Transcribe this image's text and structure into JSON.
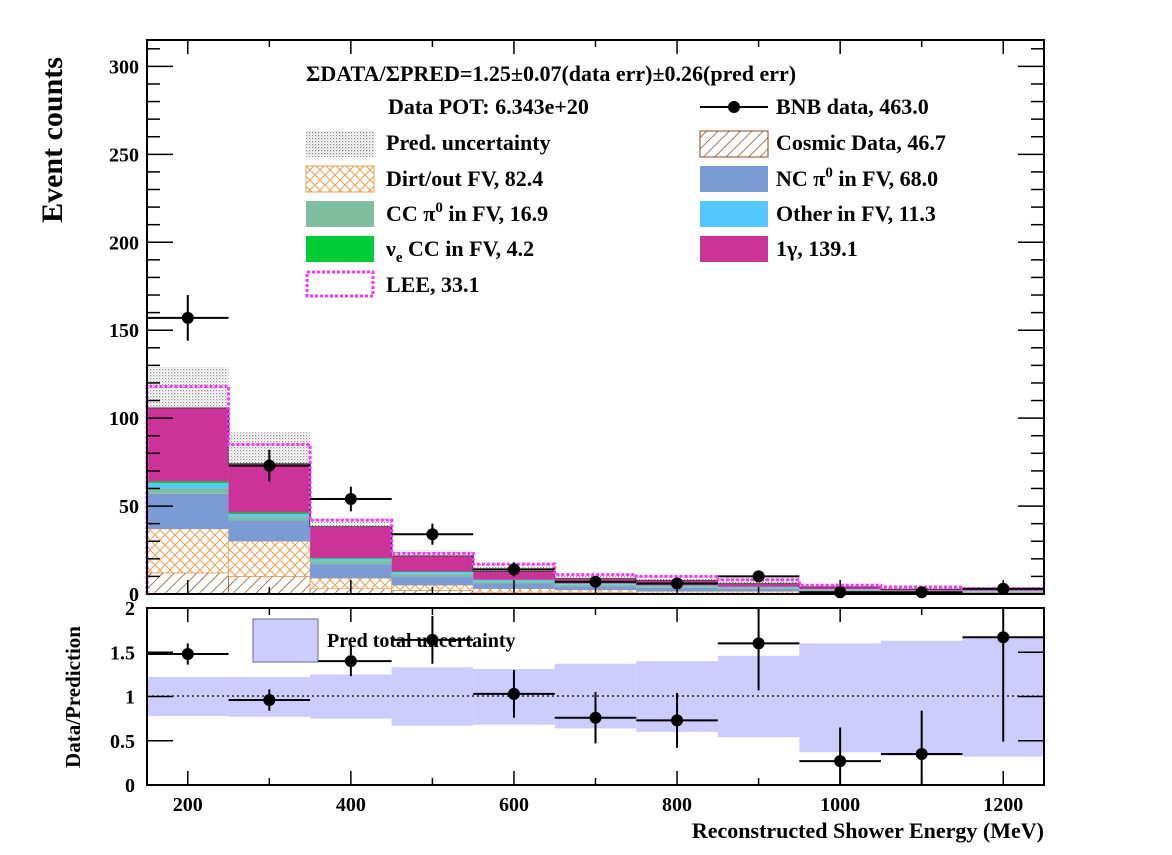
{
  "chart_data": [
    {
      "type": "bar",
      "subtype": "stacked-histogram",
      "ylabel": "Event counts",
      "xlabel": "",
      "xlim": [
        150,
        1250
      ],
      "ylim": [
        0,
        315
      ],
      "yticks": [
        0,
        50,
        100,
        150,
        200,
        250,
        300
      ],
      "bin_edges": [
        150,
        250,
        350,
        450,
        550,
        650,
        750,
        850,
        950,
        1050,
        1150,
        1250
      ],
      "header": "ΣDATA/ΣPRED=1.25±0.07(data err)±0.26(pred err)",
      "data_pot": "Data POT: 6.343e+20",
      "legend": {
        "data": "BNB data, 463.0",
        "pred_unc": "Pred. uncertainty",
        "cosmic": "Cosmic Data, 46.7",
        "dirt": "Dirt/out FV, 82.4",
        "ncpi0_a": "NC  π",
        "ncpi0_sup": "0",
        "ncpi0_b": " in FV,  68.0",
        "ccpi0_a": "CC  π",
        "ccpi0_sup": "0",
        "ccpi0_b": " in FV, 16.9",
        "other": "Other in FV, 11.3",
        "nue_a": "ν",
        "nue_sub": "e",
        "nue_b": " CC in FV, 4.2",
        "onegamma": "1γ, 139.1",
        "lee": "LEE, 33.1"
      },
      "series": [
        {
          "key": "cosmic",
          "color": "#8b4513",
          "values": [
            12,
            10,
            3,
            2,
            1,
            0.8,
            0.5,
            0.5,
            0.3,
            0.3,
            0.3
          ]
        },
        {
          "key": "dirt",
          "color": "#f0a050",
          "values": [
            25,
            20,
            6,
            3,
            2,
            1.5,
            1,
            1,
            0.5,
            0.5,
            0.5
          ]
        },
        {
          "key": "ncpi0",
          "color": "#7b9bd4",
          "values": [
            20,
            12,
            8,
            5,
            3,
            2,
            2,
            1.5,
            1,
            0.5,
            0.5
          ]
        },
        {
          "key": "ccpi0",
          "color": "#7fbfa0",
          "values": [
            3,
            2,
            2,
            1.5,
            1,
            1,
            0.8,
            0.7,
            0.6,
            0.3,
            0.3
          ]
        },
        {
          "key": "other",
          "color": "#55c8ff",
          "values": [
            3,
            1.5,
            1,
            1,
            0.8,
            0.5,
            0.4,
            0.3,
            0.2,
            0.2,
            0.2
          ]
        },
        {
          "key": "nue",
          "color": "#00cc33",
          "values": [
            1,
            0.8,
            0.5,
            0.3,
            0.3,
            0.2,
            0.2,
            0.1,
            0.1,
            0.1,
            0.1
          ]
        },
        {
          "key": "onegamma",
          "color": "#cc3399",
          "values": [
            42,
            28,
            18,
            9,
            5,
            3,
            3,
            2,
            1.5,
            1,
            1
          ]
        }
      ],
      "lee_total": [
        118,
        85,
        42,
        23,
        17,
        11,
        10,
        8,
        5,
        4,
        3
      ],
      "pred_unc_high": [
        129,
        92,
        43,
        25,
        17,
        11,
        10,
        9,
        5,
        3.5,
        3
      ],
      "data_points": {
        "x": [
          200,
          300,
          400,
          500,
          600,
          700,
          800,
          900,
          1000,
          1100,
          1200
        ],
        "y": [
          157,
          73,
          54,
          34,
          14,
          7,
          6,
          10,
          1,
          1,
          3
        ],
        "yerr": [
          13,
          9,
          7,
          6,
          4,
          3,
          2.5,
          3,
          1,
          1,
          2
        ]
      }
    },
    {
      "type": "scatter",
      "subtype": "ratio",
      "ylabel": "Data/Prediction",
      "xlabel": "Reconstructed Shower Energy (MeV)",
      "xlim": [
        150,
        1250
      ],
      "ylim": [
        0,
        2
      ],
      "yticks": [
        0,
        0.5,
        1,
        1.5,
        2
      ],
      "ytick_labels": [
        "0",
        "0.5",
        "1",
        "1.5",
        "2"
      ],
      "xticks": [
        200,
        400,
        600,
        800,
        1000,
        1200
      ],
      "xtick_labels": [
        "200",
        "400",
        "600",
        "800",
        "1000",
        "1200"
      ],
      "legend": "Pred total uncertainty",
      "band_color": "#ccccff",
      "band": {
        "edges": [
          150,
          250,
          350,
          450,
          550,
          650,
          750,
          850,
          950,
          1050,
          1150,
          1250
        ],
        "low": [
          0.78,
          0.77,
          0.75,
          0.67,
          0.68,
          0.64,
          0.6,
          0.54,
          0.37,
          0.33,
          0.32
        ],
        "high": [
          1.22,
          1.22,
          1.25,
          1.33,
          1.31,
          1.37,
          1.4,
          1.46,
          1.6,
          1.63,
          1.66
        ]
      },
      "points": {
        "x": [
          200,
          300,
          400,
          500,
          600,
          700,
          800,
          900,
          1000,
          1100,
          1200
        ],
        "y": [
          1.48,
          0.96,
          1.4,
          1.64,
          1.03,
          0.76,
          0.73,
          1.6,
          0.27,
          0.35,
          1.67
        ],
        "yerr": [
          0.12,
          0.12,
          0.17,
          0.27,
          0.27,
          0.29,
          0.31,
          0.53,
          0.38,
          0.49,
          1.18
        ]
      }
    }
  ]
}
